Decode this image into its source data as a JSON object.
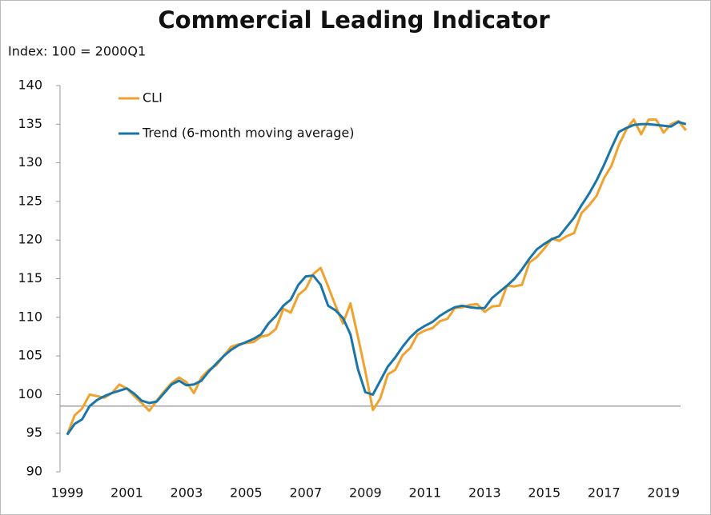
{
  "chart_data": {
    "type": "line",
    "title": "Commercial Leading Indicator",
    "subtitle": "Index: 100 = 2000Q1",
    "x": [
      1999,
      1999.25,
      1999.5,
      1999.75,
      2000,
      2000.25,
      2000.5,
      2000.75,
      2001,
      2001.25,
      2001.5,
      2001.75,
      2002,
      2002.25,
      2002.5,
      2002.75,
      2003,
      2003.25,
      2003.5,
      2003.75,
      2004,
      2004.25,
      2004.5,
      2004.75,
      2005,
      2005.25,
      2005.5,
      2005.75,
      2006,
      2006.25,
      2006.5,
      2006.75,
      2007,
      2007.25,
      2007.5,
      2007.75,
      2008,
      2008.25,
      2008.5,
      2008.75,
      2009,
      2009.25,
      2009.5,
      2009.75,
      2010,
      2010.25,
      2010.5,
      2010.75,
      2011,
      2011.25,
      2011.5,
      2011.75,
      2012,
      2012.25,
      2012.5,
      2012.75,
      2013,
      2013.25,
      2013.5,
      2013.75,
      2014,
      2014.25,
      2014.5,
      2014.75,
      2015,
      2015.25,
      2015.5,
      2015.75,
      2016,
      2016.25,
      2016.5,
      2016.75,
      2017,
      2017.25,
      2017.5,
      2017.75,
      2018,
      2018.25,
      2018.5,
      2018.75,
      2019,
      2019.25,
      2019.5,
      2019.75
    ],
    "series": [
      {
        "name": "CLI",
        "color": "#f0a22e",
        "values": [
          94.8,
          97.3,
          98.2,
          100.0,
          99.8,
          99.6,
          100.2,
          101.3,
          100.8,
          99.8,
          98.9,
          97.9,
          99.2,
          100.4,
          101.5,
          102.2,
          101.6,
          100.2,
          102.2,
          103.2,
          103.8,
          105.0,
          106.2,
          106.5,
          106.7,
          106.8,
          107.5,
          107.7,
          108.5,
          111.1,
          110.6,
          112.9,
          113.7,
          115.6,
          116.4,
          114.0,
          111.5,
          109.2,
          111.8,
          107.5,
          103.0,
          98.0,
          99.5,
          102.6,
          103.2,
          105.1,
          106.0,
          107.8,
          108.3,
          108.6,
          109.5,
          109.8,
          111.2,
          111.3,
          111.6,
          111.7,
          110.7,
          111.4,
          111.5,
          114.1,
          114.0,
          114.2,
          117.1,
          117.8,
          118.9,
          120.2,
          119.9,
          120.5,
          120.9,
          123.5,
          124.5,
          125.7,
          128.0,
          129.6,
          132.3,
          134.3,
          135.6,
          133.7,
          135.6,
          135.6,
          133.9,
          135.0,
          135.4,
          134.2
        ]
      },
      {
        "name": "Trend (6-month moving average)",
        "color": "#1a75a8",
        "values": [
          94.8,
          96.2,
          96.8,
          98.5,
          99.3,
          99.8,
          100.2,
          100.5,
          100.8,
          100.1,
          99.2,
          98.9,
          99.1,
          100.2,
          101.3,
          101.8,
          101.2,
          101.3,
          101.8,
          103.0,
          104.0,
          105.0,
          105.8,
          106.4,
          106.8,
          107.2,
          107.8,
          109.2,
          110.2,
          111.5,
          112.3,
          114.2,
          115.3,
          115.4,
          114.2,
          111.5,
          110.9,
          109.9,
          107.8,
          103.3,
          100.3,
          100.0,
          101.8,
          103.6,
          104.8,
          106.2,
          107.4,
          108.3,
          108.9,
          109.4,
          110.2,
          110.8,
          111.3,
          111.5,
          111.3,
          111.2,
          111.2,
          112.5,
          113.3,
          114.1,
          115.0,
          116.2,
          117.6,
          118.8,
          119.5,
          120.1,
          120.5,
          121.7,
          122.9,
          124.5,
          126.0,
          127.7,
          129.7,
          131.9,
          134.0,
          134.5,
          134.9,
          135.0,
          135.0,
          134.9,
          134.8,
          134.7,
          135.3,
          135.0
        ]
      }
    ],
    "reference_line": 98.5,
    "xlim": [
      1998.76,
      2020.0
    ],
    "xticks": [
      1999,
      2001,
      2003,
      2005,
      2007,
      2009,
      2011,
      2013,
      2015,
      2017,
      2019
    ],
    "ylim": [
      90,
      140
    ],
    "yticks": [
      90,
      95,
      100,
      105,
      110,
      115,
      120,
      125,
      130,
      135,
      140
    ],
    "legend": "upper left",
    "grid": false
  }
}
